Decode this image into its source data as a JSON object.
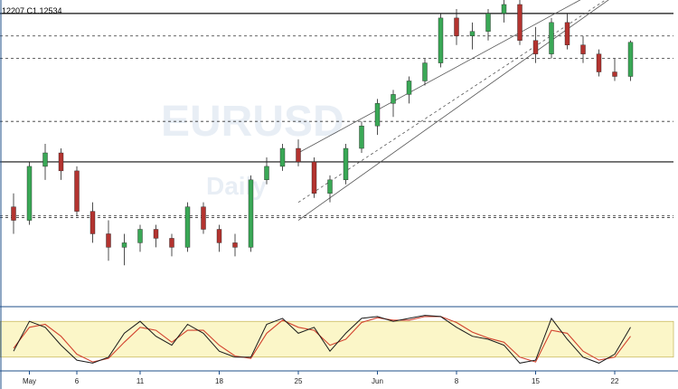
{
  "header": {
    "ohlc_text": "12207  C1.12534"
  },
  "watermark": {
    "symbol": "EURUSD",
    "subtitle": "Daily"
  },
  "colors": {
    "bull": "#3aa856",
    "bear": "#b3332f",
    "stoch_k": "#1a1a1a",
    "stoch_d": "#d2432f",
    "stoch_band": "#fbf6c8",
    "grid_border": "#1f4f8a",
    "dotted": "#333333",
    "channel": "#555555"
  },
  "chart_data": {
    "type": "candlestick",
    "title": "",
    "x_tick_labels": [
      "May",
      "6",
      "11",
      "18",
      "25",
      "Jun",
      "8",
      "15",
      "22"
    ],
    "x_tick_index": [
      1,
      4,
      8,
      13,
      18,
      23,
      28,
      33,
      38
    ],
    "y_range": [
      1.096,
      1.13
    ],
    "candles": [
      {
        "o": 1.107,
        "h": 1.1085,
        "l": 1.104,
        "c": 1.1055
      },
      {
        "o": 1.1055,
        "h": 1.112,
        "l": 1.105,
        "c": 1.1115
      },
      {
        "o": 1.1115,
        "h": 1.114,
        "l": 1.11,
        "c": 1.113
      },
      {
        "o": 1.113,
        "h": 1.1135,
        "l": 1.11,
        "c": 1.111
      },
      {
        "o": 1.111,
        "h": 1.1115,
        "l": 1.106,
        "c": 1.1065
      },
      {
        "o": 1.1065,
        "h": 1.1075,
        "l": 1.103,
        "c": 1.104
      },
      {
        "o": 1.104,
        "h": 1.1055,
        "l": 1.101,
        "c": 1.1025
      },
      {
        "o": 1.1025,
        "h": 1.104,
        "l": 1.1005,
        "c": 1.103
      },
      {
        "o": 1.103,
        "h": 1.105,
        "l": 1.102,
        "c": 1.1045
      },
      {
        "o": 1.1045,
        "h": 1.105,
        "l": 1.1025,
        "c": 1.1035
      },
      {
        "o": 1.1035,
        "h": 1.104,
        "l": 1.1015,
        "c": 1.1025
      },
      {
        "o": 1.1025,
        "h": 1.1075,
        "l": 1.102,
        "c": 1.107
      },
      {
        "o": 1.107,
        "h": 1.1075,
        "l": 1.104,
        "c": 1.1045
      },
      {
        "o": 1.1045,
        "h": 1.105,
        "l": 1.102,
        "c": 1.103
      },
      {
        "o": 1.103,
        "h": 1.104,
        "l": 1.1015,
        "c": 1.1025
      },
      {
        "o": 1.1025,
        "h": 1.1105,
        "l": 1.102,
        "c": 1.11
      },
      {
        "o": 1.11,
        "h": 1.1125,
        "l": 1.1095,
        "c": 1.1115
      },
      {
        "o": 1.1115,
        "h": 1.114,
        "l": 1.111,
        "c": 1.1135
      },
      {
        "o": 1.1135,
        "h": 1.1145,
        "l": 1.1115,
        "c": 1.112
      },
      {
        "o": 1.112,
        "h": 1.1125,
        "l": 1.108,
        "c": 1.1085
      },
      {
        "o": 1.1085,
        "h": 1.1105,
        "l": 1.1075,
        "c": 1.11
      },
      {
        "o": 1.11,
        "h": 1.114,
        "l": 1.1095,
        "c": 1.1135
      },
      {
        "o": 1.1135,
        "h": 1.1165,
        "l": 1.113,
        "c": 1.116
      },
      {
        "o": 1.116,
        "h": 1.119,
        "l": 1.115,
        "c": 1.1185
      },
      {
        "o": 1.1185,
        "h": 1.12,
        "l": 1.117,
        "c": 1.1195
      },
      {
        "o": 1.1195,
        "h": 1.1215,
        "l": 1.1185,
        "c": 1.121
      },
      {
        "o": 1.121,
        "h": 1.1235,
        "l": 1.1205,
        "c": 1.123
      },
      {
        "o": 1.123,
        "h": 1.1285,
        "l": 1.1225,
        "c": 1.128
      },
      {
        "o": 1.128,
        "h": 1.129,
        "l": 1.125,
        "c": 1.126
      },
      {
        "o": 1.126,
        "h": 1.1275,
        "l": 1.1245,
        "c": 1.1265
      },
      {
        "o": 1.1265,
        "h": 1.129,
        "l": 1.1255,
        "c": 1.1285
      },
      {
        "o": 1.1285,
        "h": 1.1305,
        "l": 1.1275,
        "c": 1.1295
      },
      {
        "o": 1.1295,
        "h": 1.13,
        "l": 1.125,
        "c": 1.1255
      },
      {
        "o": 1.1255,
        "h": 1.127,
        "l": 1.123,
        "c": 1.124
      },
      {
        "o": 1.124,
        "h": 1.128,
        "l": 1.1235,
        "c": 1.1275
      },
      {
        "o": 1.1275,
        "h": 1.1285,
        "l": 1.1245,
        "c": 1.125
      },
      {
        "o": 1.125,
        "h": 1.126,
        "l": 1.123,
        "c": 1.124
      },
      {
        "o": 1.124,
        "h": 1.1245,
        "l": 1.1215,
        "c": 1.122
      },
      {
        "o": 1.122,
        "h": 1.1235,
        "l": 1.121,
        "c": 1.1215
      },
      {
        "o": 1.1215,
        "h": 1.1255,
        "l": 1.121,
        "c": 1.1253
      }
    ],
    "stochastic": {
      "range": [
        0,
        100
      ],
      "band": [
        20,
        80
      ],
      "k": [
        30,
        80,
        70,
        40,
        15,
        10,
        20,
        60,
        80,
        55,
        40,
        75,
        60,
        30,
        20,
        20,
        75,
        85,
        60,
        70,
        30,
        60,
        85,
        88,
        80,
        85,
        90,
        88,
        70,
        55,
        50,
        40,
        10,
        15,
        85,
        50,
        20,
        10,
        25,
        70
      ],
      "d": [
        35,
        70,
        75,
        55,
        25,
        12,
        18,
        45,
        70,
        65,
        45,
        65,
        65,
        40,
        22,
        18,
        60,
        82,
        70,
        65,
        40,
        50,
        78,
        86,
        82,
        82,
        88,
        88,
        78,
        62,
        52,
        45,
        20,
        12,
        65,
        60,
        30,
        15,
        20,
        55
      ]
    },
    "price_levels": [
      {
        "value": 1.1285,
        "style": "solid"
      },
      {
        "value": 1.1165,
        "style": "dotted"
      },
      {
        "value": 1.112,
        "style": "solid"
      },
      {
        "value": 1.106,
        "style": "dotted"
      },
      {
        "value": 1.1058,
        "style": "dotted"
      },
      {
        "value": 1.126,
        "style": "dotted"
      },
      {
        "value": 1.1235,
        "style": "dotted"
      }
    ],
    "channel": {
      "start_index": 18,
      "end_index": 40,
      "upper_start": 1.113,
      "upper_end": 1.134,
      "mid_start": 1.1075,
      "mid_end": 1.133,
      "lower_start": 1.1055,
      "lower_end": 1.133
    }
  }
}
